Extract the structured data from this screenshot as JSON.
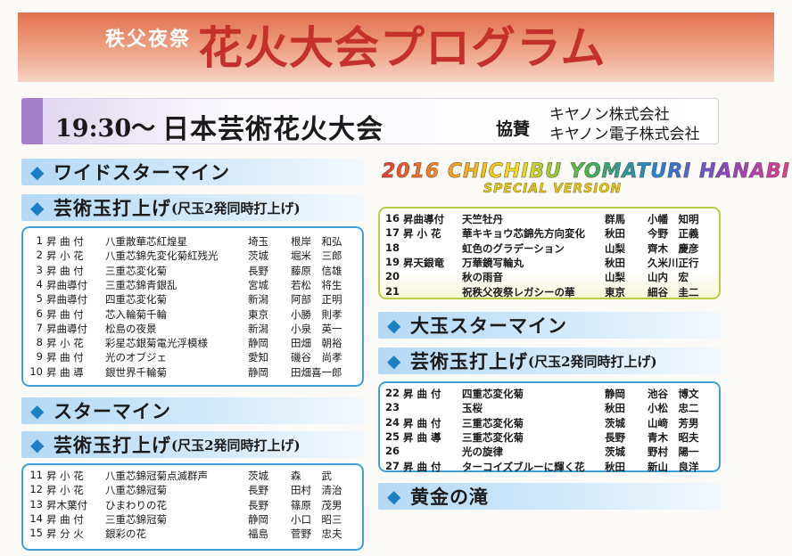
{
  "banner": {
    "subtitle": "秩父夜祭",
    "title": "花火大会プログラム"
  },
  "header": {
    "time": "19:30〜",
    "title": "日本芸術花火大会",
    "sponsor_label": "協賛",
    "sponsors": [
      "キヤノン株式会社",
      "キヤノン電子株式会社"
    ]
  },
  "logo": {
    "line1": "2016 CHICHIBU YOMATURI HANABI",
    "line2": "SPECIAL VERSION",
    "colors": [
      "#e93a2f",
      "#f59f1b",
      "#f6e01c",
      "#46b64a",
      "#1e84d6",
      "#8a46c4"
    ]
  },
  "sections": {
    "wide_starmine": "ワイドスターマイン",
    "geijutsu1": {
      "title": "芸術玉打上げ",
      "sub": "(尺玉2発同時打上げ)"
    },
    "starmine": "スターマイン",
    "geijutsu2": {
      "title": "芸術玉打上げ",
      "sub": "(尺玉2発同時打上げ)"
    },
    "odama_starmine": "大玉スターマイン",
    "geijutsu3": {
      "title": "芸術玉打上げ",
      "sub": "(尺玉2発同時打上げ)"
    },
    "ougon": "黄金の滝"
  },
  "list1": [
    {
      "no": "1",
      "type": "昇 曲 付",
      "name": "八重散華芯紅煌星",
      "pref": "埼玉",
      "maker": "根岸　和弘"
    },
    {
      "no": "2",
      "type": "昇 小 花",
      "name": "八重芯錦先変化菊紅残光",
      "pref": "茨城",
      "maker": "堀米　三郎"
    },
    {
      "no": "3",
      "type": "昇 曲 付",
      "name": "三重芯変化菊",
      "pref": "長野",
      "maker": "藤原　信雄"
    },
    {
      "no": "4",
      "type": "昇曲導付",
      "name": "三重芯錦青銀乱",
      "pref": "宮城",
      "maker": "若松　将生"
    },
    {
      "no": "5",
      "type": "昇曲導付",
      "name": "四重芯変化菊",
      "pref": "新潟",
      "maker": "阿部　正明"
    },
    {
      "no": "6",
      "type": "昇 曲 付",
      "name": "芯入輪菊千輪",
      "pref": "東京",
      "maker": "小勝　則孝"
    },
    {
      "no": "7",
      "type": "昇曲導付",
      "name": "松島の夜景",
      "pref": "新潟",
      "maker": "小泉　英一"
    },
    {
      "no": "8",
      "type": "昇 小 花",
      "name": "彩星芯銀菊電光浮模様",
      "pref": "静岡",
      "maker": "田畑　朝裕"
    },
    {
      "no": "9",
      "type": "昇 曲 付",
      "name": "光のオブジェ",
      "pref": "愛知",
      "maker": "磯谷　尚孝"
    },
    {
      "no": "10",
      "type": "昇 曲 導",
      "name": "銀世界千輪菊",
      "pref": "静岡",
      "maker": "田畑喜一郎"
    }
  ],
  "list2": [
    {
      "no": "11",
      "type": "昇 小 花",
      "name": "八重芯錦冠菊点滅群声",
      "pref": "茨城",
      "maker": "森　　武"
    },
    {
      "no": "12",
      "type": "昇 小 花",
      "name": "八重芯錦冠菊",
      "pref": "長野",
      "maker": "田村　清治"
    },
    {
      "no": "13",
      "type": "昇木葉付",
      "name": "ひまわりの花",
      "pref": "長野",
      "maker": "篠原　茂男"
    },
    {
      "no": "14",
      "type": "昇 曲 付",
      "name": "三重芯錦冠菊",
      "pref": "静岡",
      "maker": "小口　昭三"
    },
    {
      "no": "15",
      "type": "昇 分 火",
      "name": "銀彩の花",
      "pref": "福島",
      "maker": "菅野　忠夫"
    }
  ],
  "list3": [
    {
      "no": "16",
      "type": "昇曲導付",
      "name": "天竺牡丹",
      "pref": "群馬",
      "maker": "小幡　知明"
    },
    {
      "no": "17",
      "type": "昇 小 花",
      "name": "華キキョウ芯錦先方向変化",
      "pref": "秋田",
      "maker": "今野　正義"
    },
    {
      "no": "18",
      "type": "",
      "name": "虹色のグラデーション",
      "pref": "山梨",
      "maker": "齊木　慶彦"
    },
    {
      "no": "19",
      "type": "昇天銀竜",
      "name": "万華鏡写輪丸",
      "pref": "秋田",
      "maker": "久米川正行"
    },
    {
      "no": "20",
      "type": "",
      "name": "秋の雨音",
      "pref": "山梨",
      "maker": "山内　宏"
    },
    {
      "no": "21",
      "type": "",
      "name": "祝秩父夜祭レガシーの華",
      "pref": "東京",
      "maker": "細谷　圭二"
    }
  ],
  "list4": [
    {
      "no": "22",
      "type": "昇 曲 付",
      "name": "四重芯変化菊",
      "pref": "静岡",
      "maker": "池谷　博文"
    },
    {
      "no": "23",
      "type": "",
      "name": "玉桜",
      "pref": "秋田",
      "maker": "小松　忠二"
    },
    {
      "no": "24",
      "type": "昇 曲 付",
      "name": "三重芯変化菊",
      "pref": "茨城",
      "maker": "山﨑　芳男"
    },
    {
      "no": "25",
      "type": "昇 曲 導",
      "name": "三重芯変化菊",
      "pref": "長野",
      "maker": "青木　昭夫"
    },
    {
      "no": "26",
      "type": "",
      "name": "光の旋律",
      "pref": "茨城",
      "maker": "野村　陽一"
    },
    {
      "no": "27",
      "type": "昇 曲 付",
      "name": "ターコイズブルーに輝く花",
      "pref": "秋田",
      "maker": "新山　良洋"
    }
  ]
}
